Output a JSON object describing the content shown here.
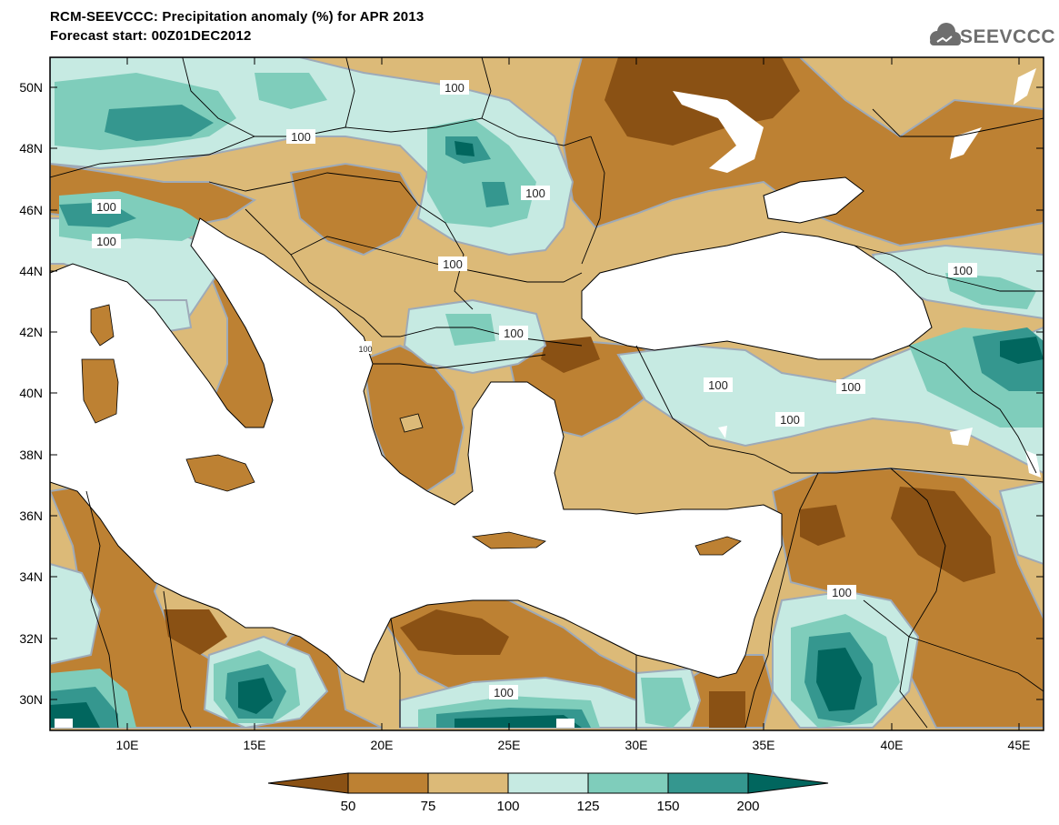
{
  "header": {
    "title_line1": "RCM-SEEVCCC: Precipitation anomaly (%) for APR 2013",
    "title_line2": "Forecast start: 00Z01DEC2012",
    "logo_text": "SEEVCCC"
  },
  "map": {
    "lat_labels": [
      "50N",
      "48N",
      "46N",
      "44N",
      "42N",
      "40N",
      "38N",
      "36N",
      "34N",
      "32N",
      "30N"
    ],
    "lon_labels": [
      "10E",
      "15E",
      "20E",
      "25E",
      "30E",
      "35E",
      "40E",
      "45E"
    ],
    "lat_range": [
      29,
      51
    ],
    "lon_range": [
      7,
      46
    ],
    "contour_labels": [
      "100",
      "100",
      "100",
      "100",
      "100",
      "100",
      "100",
      "100",
      "100",
      "100",
      "100",
      "100",
      "100",
      "100"
    ]
  },
  "colorbar": {
    "tick_labels": [
      "50",
      "75",
      "100",
      "125",
      "150",
      "200"
    ],
    "colors": [
      "#8a5114",
      "#bd8133",
      "#dcba78",
      "#c6eae2",
      "#7fcdbb",
      "#35978f",
      "#01665e"
    ]
  },
  "palette": {
    "sea": "#ffffff",
    "contour_line": "#9eaab8",
    "border_line": "#000000"
  }
}
